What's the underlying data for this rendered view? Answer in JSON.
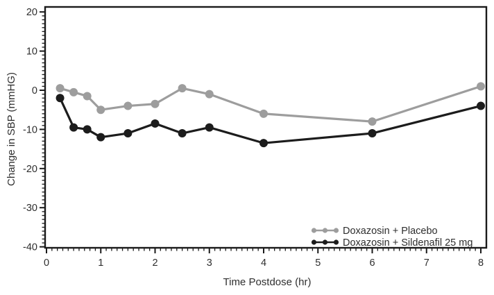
{
  "figure": {
    "background": "#ffffff",
    "axis_color": "#1a1a1a",
    "text_color": "#2e2e2e"
  },
  "chart_data": {
    "type": "line",
    "title": "",
    "xlabel": "Time Postdose (hr)",
    "ylabel": "Change in SBP (mmHG)",
    "xlim": [
      0,
      8
    ],
    "ylim": [
      -40,
      20
    ],
    "x_major_ticks": [
      0,
      1,
      2,
      3,
      4,
      5,
      6,
      7,
      8
    ],
    "y_major_ticks": [
      20,
      10,
      0,
      -10,
      -20,
      -30,
      -40
    ],
    "x_minor_step": 0.1,
    "y_minor_step": 1,
    "grid": false,
    "legend_position": "bottom-right",
    "x": [
      0.25,
      0.5,
      0.75,
      1,
      1.5,
      2,
      2.5,
      3,
      4,
      6,
      8
    ],
    "series": [
      {
        "name": "Doxazosin + Placebo",
        "color": "#9d9d9d",
        "values": [
          0.5,
          -0.5,
          -1.5,
          -5,
          -4,
          -3.5,
          0.5,
          -1,
          -6,
          -8,
          1
        ]
      },
      {
        "name": "Doxazosin + Sildenafil 25 mg",
        "color": "#1c1c1c",
        "values": [
          -2,
          -9.5,
          -10,
          -12,
          -11,
          -8.5,
          -11,
          -9.5,
          -13.5,
          -11,
          -4
        ]
      }
    ]
  }
}
